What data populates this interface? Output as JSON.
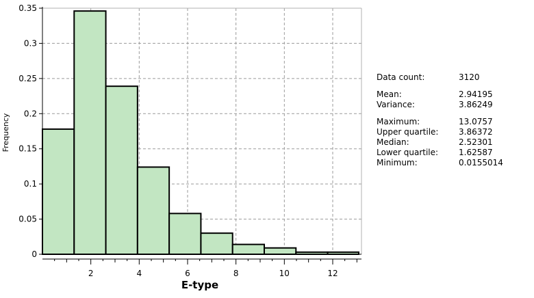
{
  "chart_data": {
    "type": "bar",
    "xlabel": "E-type",
    "ylabel": "Frequency",
    "xlim": [
      0,
      13.0757
    ],
    "ylim": [
      0,
      0.35
    ],
    "x_ticks": [
      2,
      4,
      6,
      8,
      10,
      12
    ],
    "y_ticks": [
      0,
      0.05,
      0.1,
      0.15,
      0.2,
      0.25,
      0.3,
      0.35
    ],
    "y_tick_labels": [
      "0",
      "0.05",
      "0.1",
      "0.15",
      "0.2",
      "0.25",
      "0.3",
      "0.35"
    ],
    "grid": true,
    "bar_color": "#c2e6c2",
    "bar_edge_color": "#000000",
    "bins": [
      {
        "x0": 0,
        "x1": 1.31,
        "value": 0.178
      },
      {
        "x0": 1.31,
        "x1": 2.62,
        "value": 0.346
      },
      {
        "x0": 2.62,
        "x1": 3.93,
        "value": 0.239
      },
      {
        "x0": 3.93,
        "x1": 5.24,
        "value": 0.124
      },
      {
        "x0": 5.24,
        "x1": 6.55,
        "value": 0.058
      },
      {
        "x0": 6.55,
        "x1": 7.86,
        "value": 0.03
      },
      {
        "x0": 7.86,
        "x1": 9.17,
        "value": 0.014
      },
      {
        "x0": 9.17,
        "x1": 10.48,
        "value": 0.009
      },
      {
        "x0": 10.48,
        "x1": 11.79,
        "value": 0.003
      },
      {
        "x0": 11.79,
        "x1": 13.0757,
        "value": 0.003
      }
    ]
  },
  "stats": {
    "count": {
      "label": "Data count:",
      "value": "3120"
    },
    "mean": {
      "label": "Mean:",
      "value": "2.94195"
    },
    "variance": {
      "label": "Variance:",
      "value": "3.86249"
    },
    "maximum": {
      "label": "Maximum:",
      "value": "13.0757"
    },
    "upper_quartile": {
      "label": "Upper quartile:",
      "value": "3.86372"
    },
    "median": {
      "label": "Median:",
      "value": "2.52301"
    },
    "lower_quartile": {
      "label": "Lower quartile:",
      "value": "1.62587"
    },
    "minimum": {
      "label": "Minimum:",
      "value": "0.0155014"
    }
  }
}
